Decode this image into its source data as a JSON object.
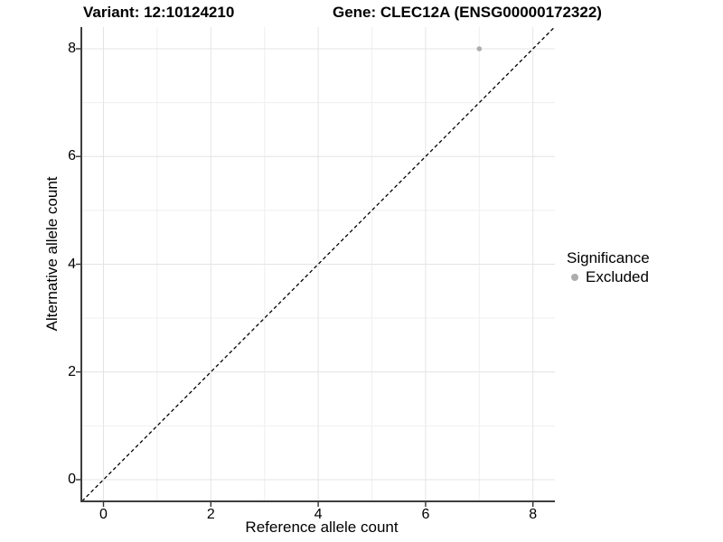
{
  "header": {
    "variant_title": "Variant: 12:10124210",
    "gene_title": "Gene: CLEC12A (ENSG00000172322)"
  },
  "chart_data": {
    "type": "scatter",
    "title": "Variant: 12:10124210   Gene: CLEC12A (ENSG00000172322)",
    "xlabel": "Reference allele count",
    "ylabel": "Alternative allele count",
    "xlim": [
      -0.4,
      8.4
    ],
    "ylim": [
      -0.4,
      8.4
    ],
    "x_ticks": [
      0,
      2,
      4,
      6,
      8
    ],
    "y_ticks": [
      0,
      2,
      4,
      6,
      8
    ],
    "x_minor_ticks": [
      1,
      3,
      5,
      7
    ],
    "y_minor_ticks": [
      1,
      3,
      5,
      7
    ],
    "grid": true,
    "series": [
      {
        "name": "Excluded",
        "color": "#adadad",
        "points": [
          {
            "x": 7,
            "y": 8
          }
        ]
      }
    ],
    "reference_line": {
      "type": "identity",
      "style": "dashed",
      "color": "#000000"
    },
    "legend": {
      "position": "right",
      "title": "Significance",
      "entries": [
        {
          "label": "Excluded",
          "color": "#adadad"
        }
      ]
    }
  },
  "colors": {
    "background": "#ffffff",
    "grid_major": "#e4e4e4",
    "grid_minor": "#efefef",
    "axis_line": "#3d3d3d",
    "tick_mark": "#333333",
    "point": "#adadad",
    "identity_line": "#000000",
    "text": "#000000"
  }
}
